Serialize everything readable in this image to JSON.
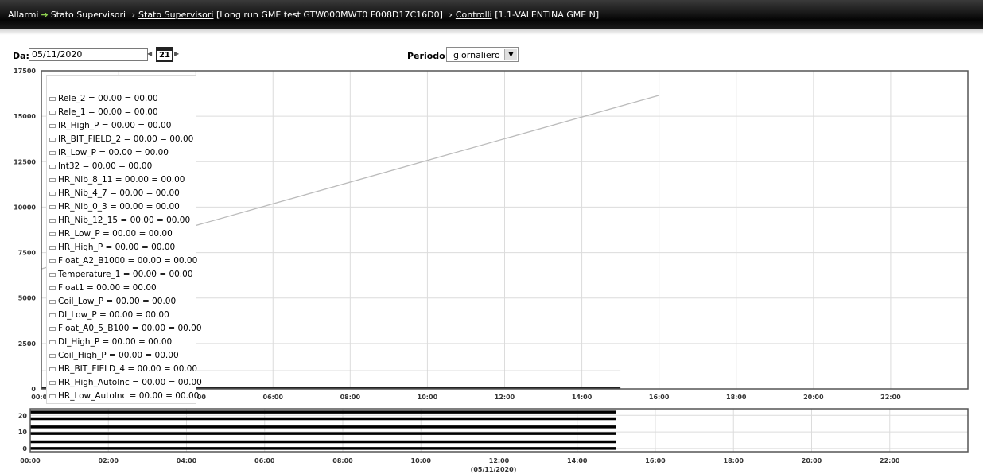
{
  "breadcrumb": {
    "items": [
      {
        "label": "Allarmi",
        "link": false
      },
      {
        "label": "Stato Supervisori",
        "link": false
      },
      {
        "label": "Stato Supervisori",
        "link": true
      },
      {
        "label": "[Long run GME test GTW000MWT0 F008D17C16D0]",
        "link": false
      },
      {
        "label": "Controlli",
        "link": true
      },
      {
        "label": "[1.1-VALENTINA GME N]",
        "link": false
      }
    ]
  },
  "controls": {
    "da_label": "Da:",
    "date_value": "05/11/2020",
    "calendar_day": "21",
    "periodo_label": "Periodo:",
    "periodo_value": "giornaliero"
  },
  "chart_data": [
    {
      "type": "line",
      "title": "",
      "ylim": [
        0,
        17500
      ],
      "yticks": [
        0,
        2500,
        5000,
        7500,
        10000,
        12500,
        15000,
        17500
      ],
      "xlim": [
        0,
        24
      ],
      "xticks": [
        "00:00",
        "02:00",
        "04:00",
        "06:00",
        "08:00",
        "10:00",
        "12:00",
        "14:00",
        "16:00",
        "18:00",
        "20:00",
        "22:00"
      ],
      "grid": true,
      "series": [
        {
          "x": [
            0,
            16
          ],
          "y": [
            6600,
            16150
          ],
          "color": "#bbbbbb"
        },
        {
          "x": [
            0,
            15
          ],
          "y": [
            1000,
            1000
          ],
          "color": "#d0d0d0"
        },
        {
          "x": [
            0,
            15
          ],
          "y": [
            50,
            50
          ],
          "color": "#222222"
        }
      ],
      "legend_position": "top-left",
      "legend": [
        "Rele_2 = 00.00 = 00.00",
        "Rele_1 = 00.00 = 00.00",
        "IR_High_P = 00.00 = 00.00",
        "IR_BIT_FIELD_2 = 00.00 = 00.00",
        "IR_Low_P = 00.00 = 00.00",
        "Int32 = 00.00 = 00.00",
        "HR_Nib_8_11 = 00.00 = 00.00",
        "HR_Nib_4_7 = 00.00 = 00.00",
        "HR_Nib_0_3 = 00.00 = 00.00",
        "HR_Nib_12_15 = 00.00 = 00.00",
        "HR_Low_P = 00.00 = 00.00",
        "HR_High_P = 00.00 = 00.00",
        "Float_A2_B1000 = 00.00 = 00.00",
        "Temperature_1 = 00.00 = 00.00",
        "Float1 = 00.00 = 00.00",
        "Coil_Low_P = 00.00 = 00.00",
        "DI_Low_P = 00.00 = 00.00",
        "Float_A0_5_B100 = 00.00 = 00.00",
        "DI_High_P = 00.00 = 00.00",
        "Coil_High_P = 00.00 = 00.00",
        "HR_BIT_FIELD_4 = 00.00 = 00.00",
        "HR_High_AutoInc = 00.00 = 00.00",
        "HR_Low_AutoInc = 00.00 = 00.00"
      ]
    },
    {
      "type": "line",
      "title": "",
      "ylim": [
        -2,
        24
      ],
      "yticks": [
        0,
        10,
        20
      ],
      "xlim": [
        0,
        24
      ],
      "xticks": [
        "00:00",
        "02:00",
        "04:00",
        "06:00",
        "08:00",
        "10:00",
        "12:00",
        "14:00",
        "16:00",
        "18:00",
        "20:00",
        "22:00"
      ],
      "xlabel": "(05/11/2020)",
      "grid": true,
      "series": [
        {
          "x": [
            0,
            15
          ],
          "y": [
            22,
            22
          ],
          "color": "#000000"
        },
        {
          "x": [
            0,
            15
          ],
          "y": [
            18,
            18
          ],
          "color": "#000000"
        },
        {
          "x": [
            0,
            15
          ],
          "y": [
            13,
            13
          ],
          "color": "#000000"
        },
        {
          "x": [
            0,
            15
          ],
          "y": [
            9,
            9
          ],
          "color": "#000000"
        },
        {
          "x": [
            0,
            15
          ],
          "y": [
            4,
            4
          ],
          "color": "#000000"
        },
        {
          "x": [
            0,
            15
          ],
          "y": [
            0,
            0
          ],
          "color": "#000000"
        }
      ]
    }
  ]
}
